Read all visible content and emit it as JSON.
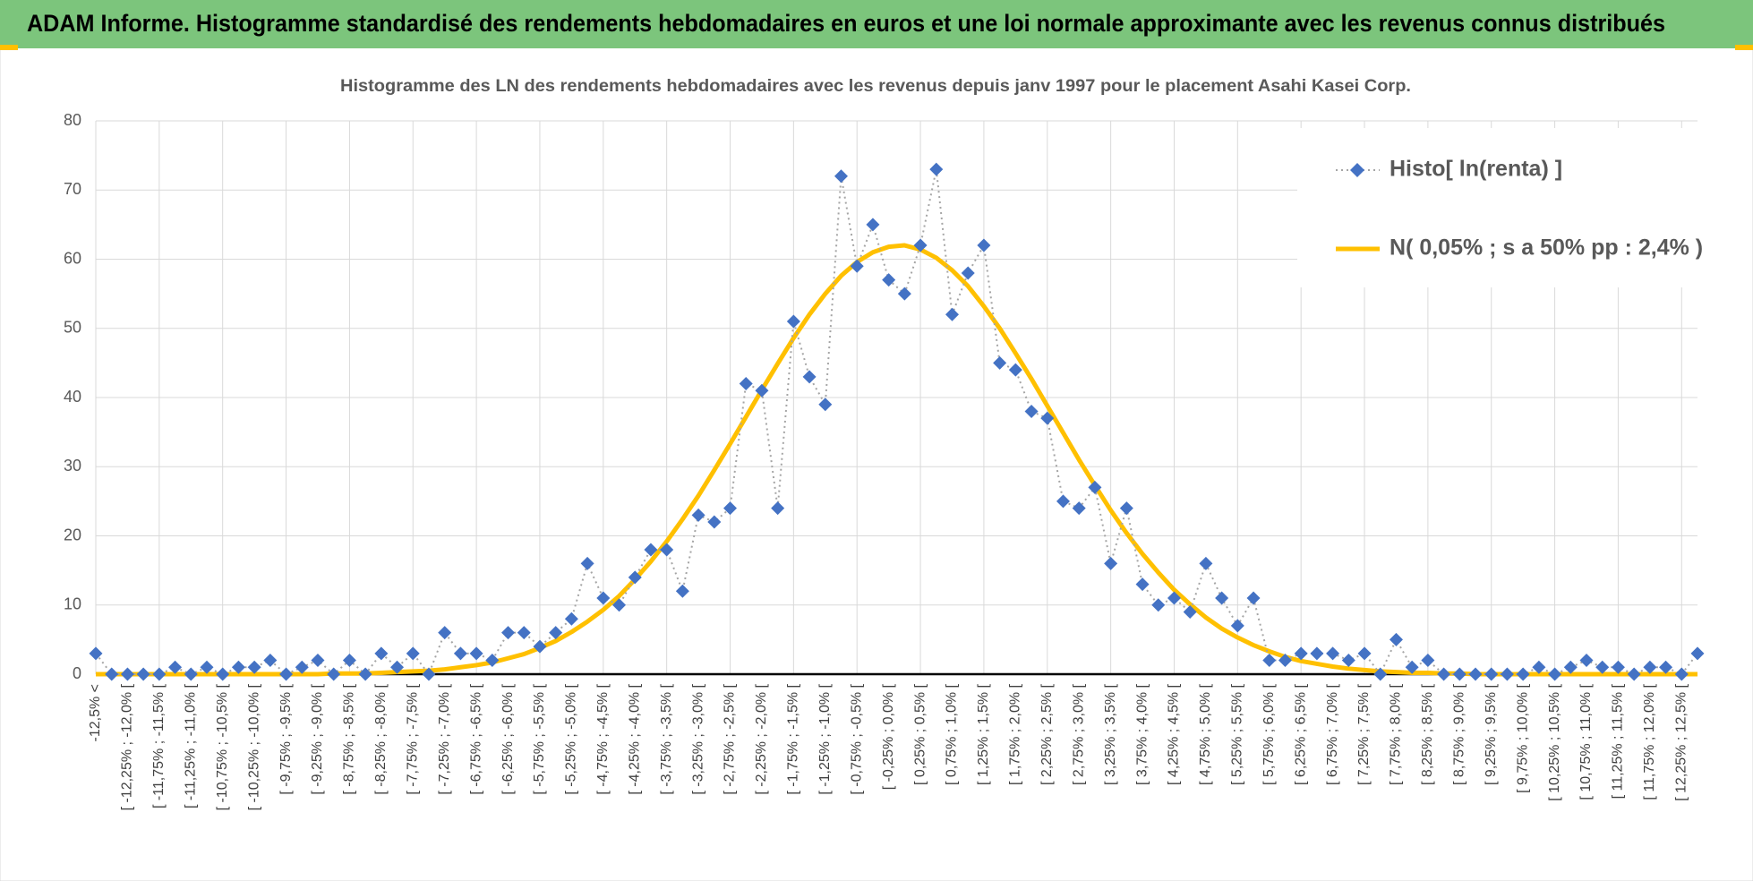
{
  "header": {
    "title": "ADAM Informe. Histogramme standardisé des rendements hebdomadaires en euros et une loi normale approximante avec les revenus connus distribués"
  },
  "chart_data": {
    "type": "line",
    "title": "Histogramme des LN des rendements hebdomadaires avec les revenus depuis janv 1997 pour le placement Asahi Kasei Corp.",
    "categories": [
      "-12,5% <",
      null,
      "[ -12,25% ; -12,0% [",
      null,
      "[ -11,75% ; -11,5% [",
      null,
      "[ -11,25% ; -11,0% [",
      null,
      "[ -10,75% ; -10,5% [",
      null,
      "[ -10,25% ; -10,0% [",
      null,
      "[ -9,75% ; -9,5% [",
      null,
      "[ -9,25% ; -9,0% [",
      null,
      "[ -8,75% ; -8,5% [",
      null,
      "[ -8,25% ; -8,0% [",
      null,
      "[ -7,75% ; -7,5% [",
      null,
      "[ -7,25% ; -7,0% [",
      null,
      "[ -6,75% ; -6,5% [",
      null,
      "[ -6,25% ; -6,0% [",
      null,
      "[ -5,75% ; -5,5% [",
      null,
      "[ -5,25% ; -5,0% [",
      null,
      "[ -4,75% ; -4,5% [",
      null,
      "[ -4,25% ; -4,0% [",
      null,
      "[ -3,75% ; -3,5% [",
      null,
      "[ -3,25% ; -3,0% [",
      null,
      "[ -2,75% ; -2,5% [",
      null,
      "[ -2,25% ; -2,0% [",
      null,
      "[ -1,75% ; -1,5% [",
      null,
      "[ -1,25% ; -1,0% [",
      null,
      "[ -0,75% ; -0,5% [",
      null,
      "[ -0,25% ; 0,0% [",
      null,
      "[ 0,25% ; 0,5% [",
      null,
      "[ 0,75% ; 1,0% [",
      null,
      "[ 1,25% ; 1,5% [",
      null,
      "[ 1,75% ; 2,0% [",
      null,
      "[ 2,25% ; 2,5% [",
      null,
      "[ 2,75% ; 3,0% [",
      null,
      "[ 3,25% ; 3,5% [",
      null,
      "[ 3,75% ; 4,0% [",
      null,
      "[ 4,25% ; 4,5% [",
      null,
      "[ 4,75% ; 5,0% [",
      null,
      "[ 5,25% ; 5,5% [",
      null,
      "[ 5,75% ; 6,0% [",
      null,
      "[ 6,25% ; 6,5% [",
      null,
      "[ 6,75% ; 7,0% [",
      null,
      "[ 7,25% ; 7,5% [",
      null,
      "[ 7,75% ; 8,0% [",
      null,
      "[ 8,25% ; 8,5% [",
      null,
      "[ 8,75% ; 9,0% [",
      null,
      "[ 9,25% ; 9,5% [",
      null,
      "[ 9,75% ; 10,0% [",
      null,
      "[ 10,25% ; 10,5% [",
      null,
      "[ 10,75% ; 11,0% [",
      null,
      "[ 11,25% ; 11,5% [",
      null,
      "[ 11,75% ; 12,0% [",
      null,
      "[ 12,25% ; 12,5% [",
      null
    ],
    "series": [
      {
        "name": "Histo[ ln(renta) ]",
        "color": "#4472c4",
        "line_color": "#a5a5a5",
        "marker": "diamond",
        "line_style": "dotted",
        "values": [
          3,
          0,
          0,
          0,
          0,
          1,
          0,
          1,
          0,
          1,
          1,
          2,
          0,
          1,
          2,
          0,
          2,
          0,
          3,
          1,
          3,
          0,
          6,
          3,
          3,
          2,
          6,
          6,
          4,
          6,
          8,
          16,
          11,
          10,
          14,
          18,
          18,
          12,
          23,
          22,
          24,
          42,
          41,
          24,
          51,
          43,
          39,
          72,
          59,
          65,
          57,
          55,
          62,
          73,
          52,
          58,
          62,
          45,
          44,
          38,
          37,
          25,
          24,
          27,
          16,
          24,
          13,
          10,
          11,
          9,
          16,
          11,
          7,
          11,
          2,
          2,
          3,
          3,
          3,
          2,
          3,
          0,
          5,
          1,
          2,
          0,
          0,
          0,
          0,
          0,
          0,
          1,
          0,
          1,
          2,
          1,
          1,
          0,
          1,
          1,
          0,
          3
        ]
      },
      {
        "name": "N( 0,05% ; s a 50% pp : 2,4% )",
        "color": "#ffc000",
        "line_style": "solid",
        "values": [
          0,
          0,
          0,
          0,
          0,
          0,
          0,
          0,
          0,
          0,
          0,
          0,
          0,
          0,
          0,
          0.1,
          0.1,
          0.1,
          0.2,
          0.3,
          0.4,
          0.5,
          0.7,
          1.0,
          1.3,
          1.7,
          2.3,
          2.9,
          3.8,
          4.8,
          6.1,
          7.6,
          9.3,
          11.3,
          13.7,
          16.3,
          19.2,
          22.4,
          25.8,
          29.5,
          33.3,
          37.2,
          41.1,
          44.9,
          48.6,
          52.0,
          55.0,
          57.6,
          59.6,
          61.0,
          61.8,
          62.0,
          61.4,
          60.2,
          58.4,
          56.1,
          53.2,
          50.0,
          46.4,
          42.7,
          38.8,
          34.9,
          31.0,
          27.3,
          23.7,
          20.4,
          17.4,
          14.7,
          12.2,
          10.1,
          8.2,
          6.6,
          5.3,
          4.2,
          3.3,
          2.5,
          1.9,
          1.5,
          1.1,
          0.8,
          0.6,
          0.4,
          0.3,
          0.2,
          0.2,
          0.1,
          0.1,
          0,
          0,
          0,
          0,
          0,
          0,
          0,
          0,
          0,
          0,
          0,
          0,
          0,
          0,
          0
        ]
      }
    ],
    "ylim": [
      0,
      80
    ],
    "yticks": [
      0,
      10,
      20,
      30,
      40,
      50,
      60,
      70,
      80
    ],
    "grid": true,
    "legend": "top-right"
  }
}
